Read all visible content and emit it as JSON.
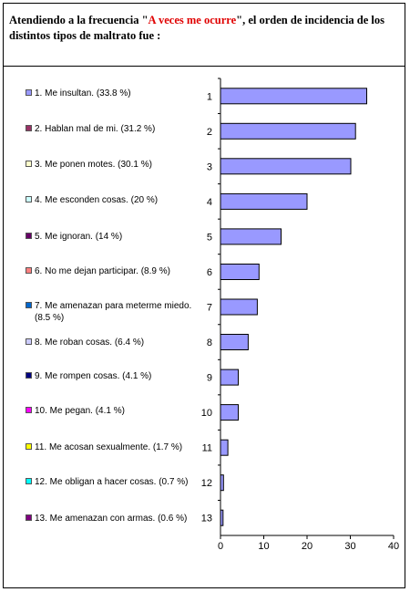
{
  "title": {
    "part1": "Atendiendo a la frecuencia \"",
    "highlight": "A veces me ocurre",
    "part2": "\", el orden de incidencia de los distintos tipos de maltrato fue :"
  },
  "colors": {
    "bar": "#9999ff",
    "bar_stroke": "#000000",
    "title_highlight": "#e00000"
  },
  "chart_data": {
    "type": "bar",
    "orientation": "horizontal",
    "categories": [
      "1",
      "2",
      "3",
      "4",
      "5",
      "6",
      "7",
      "8",
      "9",
      "10",
      "11",
      "12",
      "13"
    ],
    "values": [
      33.8,
      31.2,
      30.1,
      20,
      14,
      8.9,
      8.5,
      6.4,
      4.1,
      4.1,
      1.7,
      0.7,
      0.6
    ],
    "xlim": [
      0,
      40
    ],
    "xticks": [
      "0",
      "10",
      "20",
      "30",
      "40"
    ],
    "grid": false,
    "legend_position": "left"
  },
  "legend": [
    {
      "label": "1.  Me insultan. (33.8 %)",
      "color": "#9999ff"
    },
    {
      "label": "2.  Hablan mal de mi. (31.2 %)",
      "color": "#993366"
    },
    {
      "label": "3.  Me ponen motes. (30.1 %)",
      "color": "#ffffcc"
    },
    {
      "label": "4.  Me esconden cosas. (20 %)",
      "color": "#ccffff"
    },
    {
      "label": "5.  Me ignoran. (14 %)",
      "color": "#660066"
    },
    {
      "label": "6.  No me dejan participar. (8.9 %)",
      "color": "#ff8080"
    },
    {
      "label": "7.  Me amenazan para meterme miedo. (8.5 %)",
      "color": "#0066cc"
    },
    {
      "label": "8.  Me roban cosas. (6.4 %)",
      "color": "#ccccff"
    },
    {
      "label": "9.  Me rompen cosas. (4.1 %)",
      "color": "#000080"
    },
    {
      "label": "10.  Me pegan. (4.1 %)",
      "color": "#ff00ff"
    },
    {
      "label": "11.  Me acosan sexualmente. (1.7 %)",
      "color": "#ffff00"
    },
    {
      "label": "12.  Me obligan a hacer cosas. (0.7 %)",
      "color": "#00ffff"
    },
    {
      "label": "13.  Me amenazan con armas. (0.6 %)",
      "color": "#800080"
    }
  ]
}
